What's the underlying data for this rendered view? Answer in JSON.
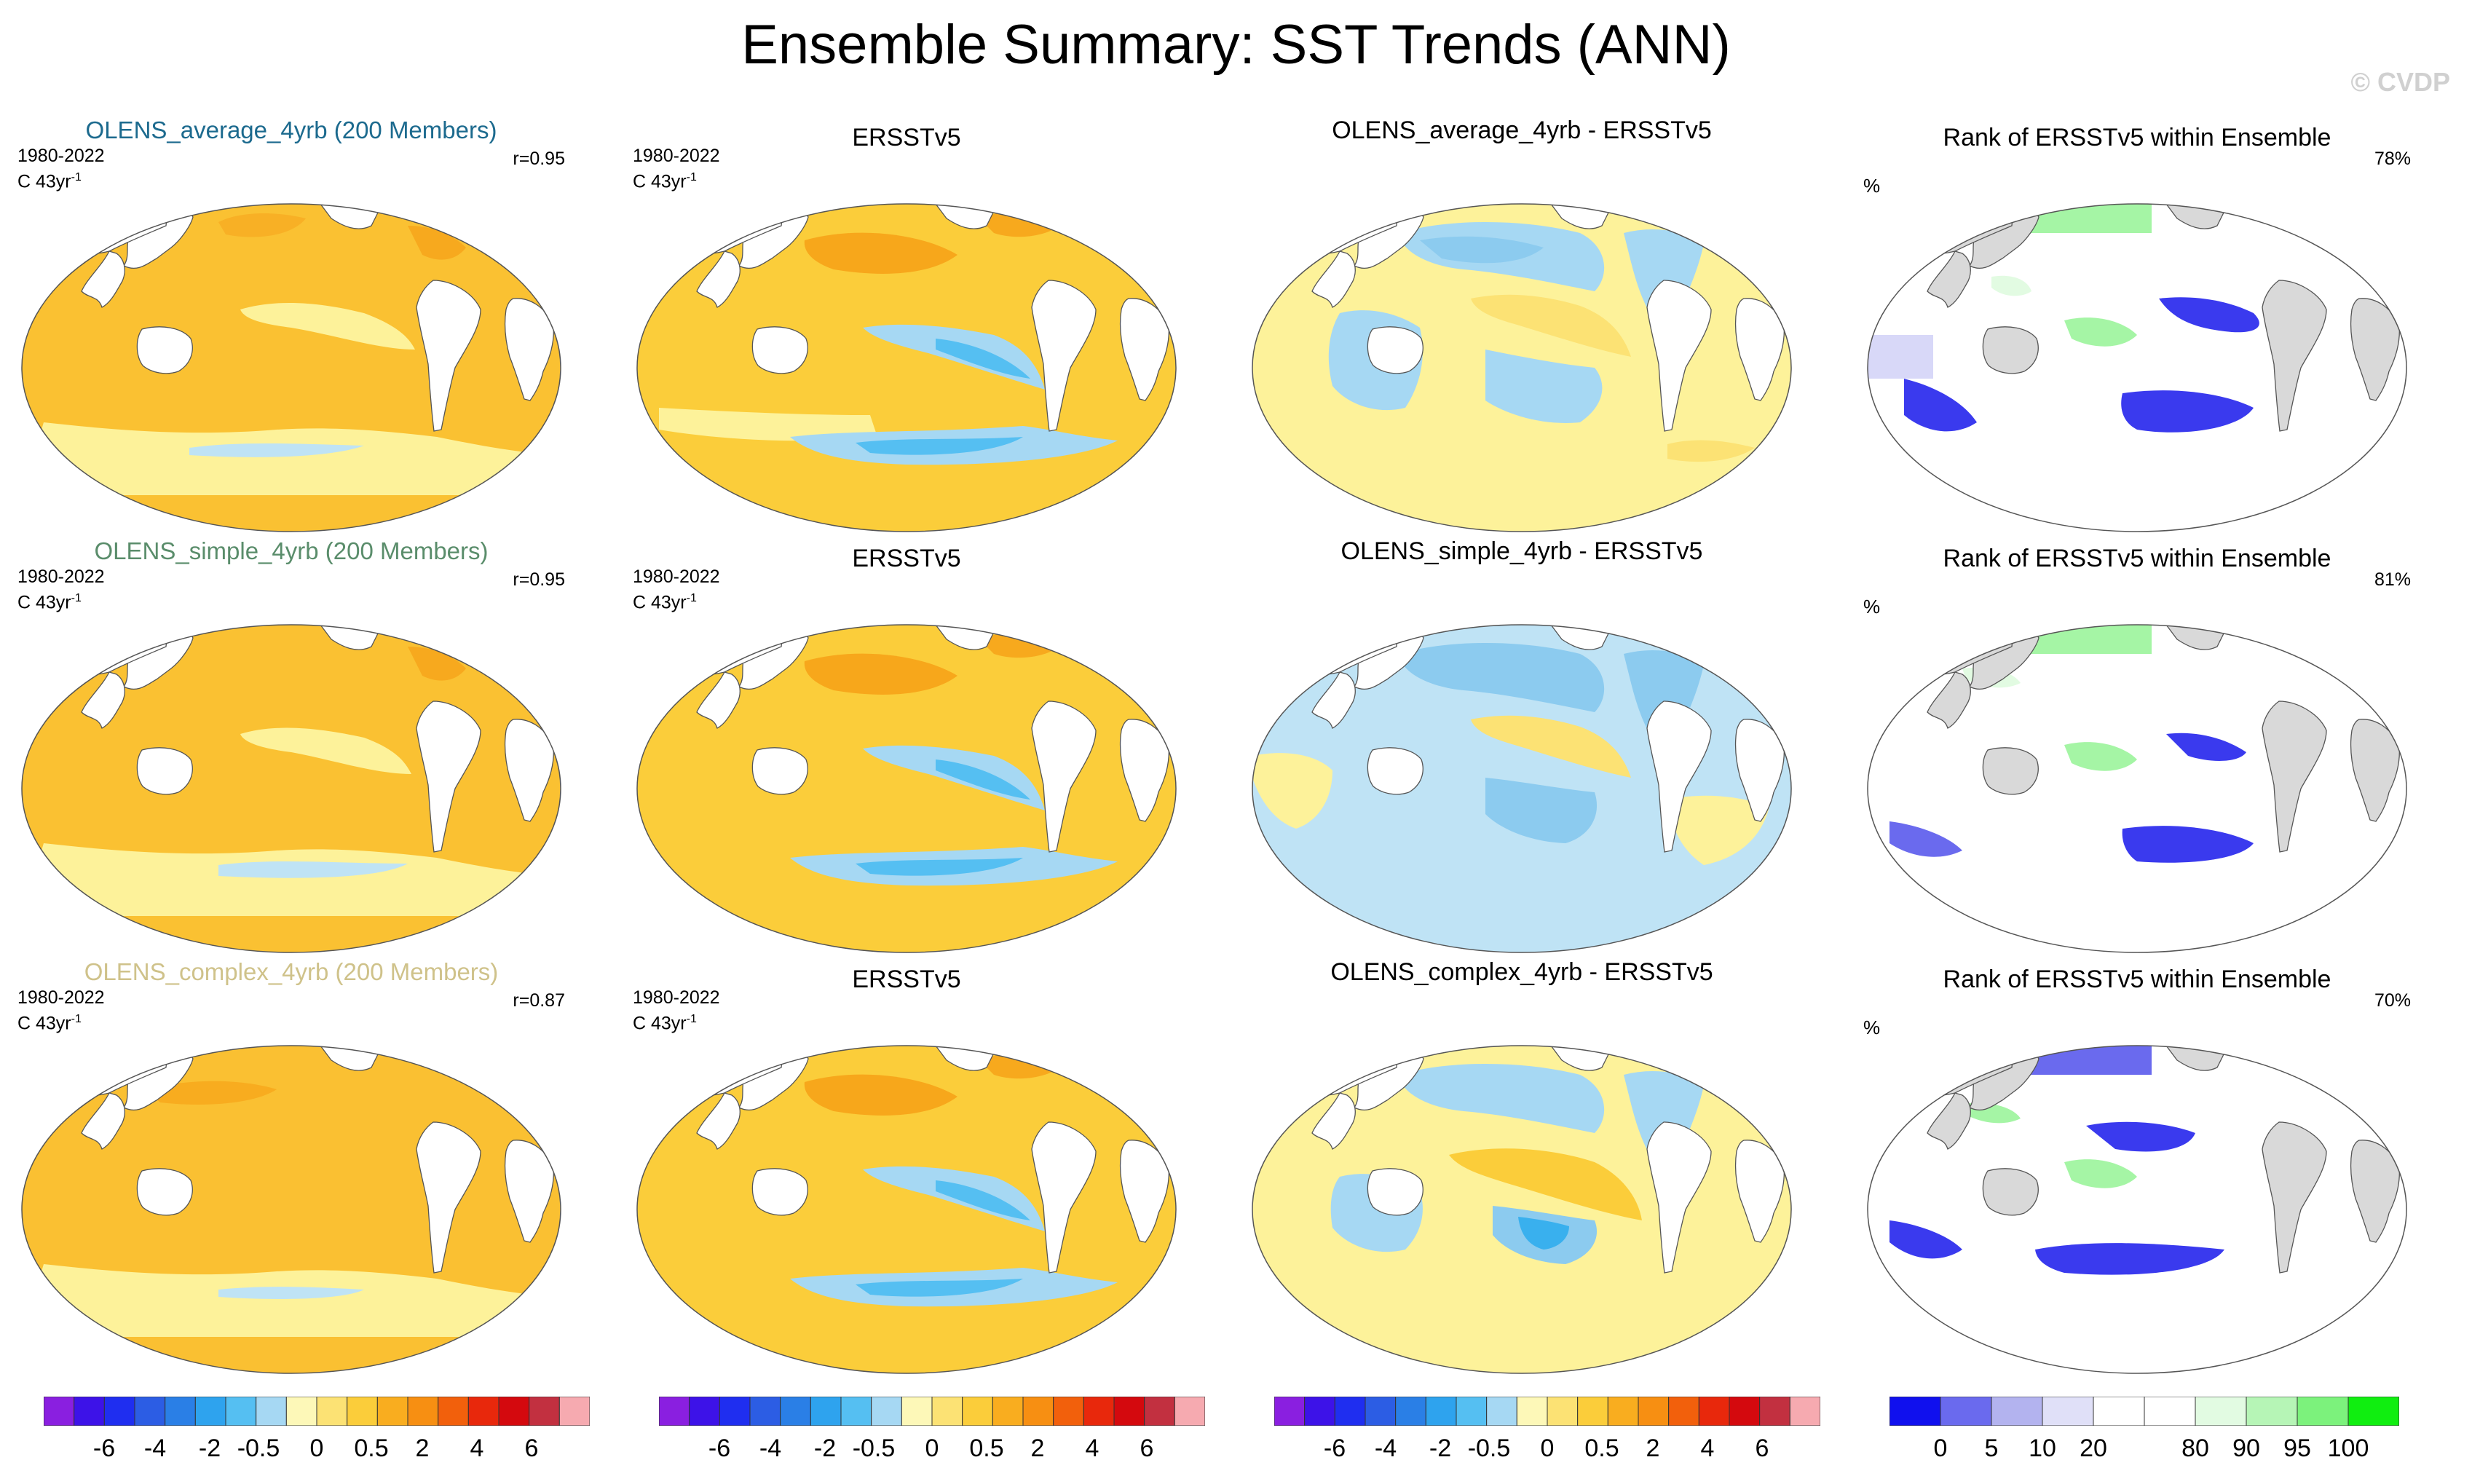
{
  "title": "Ensemble Summary: SST Trends (ANN)",
  "watermark": "© CVDP",
  "colors": {
    "warm_light": "#fdf29a",
    "warm_mid": "#fcd34a",
    "warm_orange": "#f9ae21",
    "warm_deep": "#f59a11",
    "cool_light": "#bfe3f5",
    "cool_mid": "#8ccbef",
    "cool_deep": "#39b0ee",
    "land": "#ffffff",
    "rank_land": "#d9d9d9",
    "rank_low": "#3a3aee",
    "rank_mid": "#d8d8f8",
    "rank_high": "#a5f5a5"
  },
  "rows": [
    {
      "model": {
        "title": "OLENS_average_4yrb (200 Members)",
        "color": "#1c6a8e",
        "period": "1980-2022",
        "units_base": "C 43yr",
        "units_exp": "-1",
        "r": "r=0.95"
      },
      "obs": {
        "title": "ERSSTv5",
        "period": "1980-2022",
        "units_base": "C 43yr",
        "units_exp": "-1"
      },
      "diff": {
        "title": "OLENS_average_4yrb - ERSSTv5"
      },
      "rank": {
        "title": "Rank of ERSSTv5 within Ensemble",
        "unit": "%",
        "value": "78%"
      }
    },
    {
      "model": {
        "title": "OLENS_simple_4yrb (200 Members)",
        "color": "#5a8d6b",
        "period": "1980-2022",
        "units_base": "C 43yr",
        "units_exp": "-1",
        "r": "r=0.95"
      },
      "obs": {
        "title": "ERSSTv5",
        "period": "1980-2022",
        "units_base": "C 43yr",
        "units_exp": "-1"
      },
      "diff": {
        "title": "OLENS_simple_4yrb - ERSSTv5"
      },
      "rank": {
        "title": "Rank of ERSSTv5 within Ensemble",
        "unit": "%",
        "value": "81%"
      }
    },
    {
      "model": {
        "title": "OLENS_complex_4yrb (200 Members)",
        "color": "#cfc28a",
        "period": "1980-2022",
        "units_base": "C 43yr",
        "units_exp": "-1",
        "r": "r=0.87"
      },
      "obs": {
        "title": "ERSSTv5",
        "period": "1980-2022",
        "units_base": "C 43yr",
        "units_exp": "-1"
      },
      "diff": {
        "title": "OLENS_complex_4yrb - ERSSTv5"
      },
      "rank": {
        "title": "Rank of ERSSTv5 within Ensemble",
        "unit": "%",
        "value": "70%"
      }
    }
  ],
  "trend_colorbar": {
    "colors": [
      "#8a1fe0",
      "#3d12e8",
      "#1f2ef0",
      "#2c5de4",
      "#2a7fe6",
      "#2ea3ee",
      "#55bff2",
      "#a6d8f3",
      "#fdf8b8",
      "#fce274",
      "#fbcd3a",
      "#f9ad1f",
      "#f78f12",
      "#f2600c",
      "#e8280c",
      "#d4090e",
      "#c23040",
      "#f6aab0"
    ],
    "labels": [
      "-6",
      "-4",
      "-2",
      "-0.5",
      "0",
      "0.5",
      "2",
      "4",
      "6"
    ]
  },
  "rank_colorbar": {
    "colors": [
      "#1010ee",
      "#6a6aee",
      "#b3b3ef",
      "#e0e0f8",
      "#ffffff",
      "#ffffff",
      "#e2fbe2",
      "#b6f5b6",
      "#7cf27c",
      "#10ee10"
    ],
    "labels": [
      "0",
      "5",
      "10",
      "20",
      "80",
      "90",
      "95",
      "100"
    ]
  }
}
